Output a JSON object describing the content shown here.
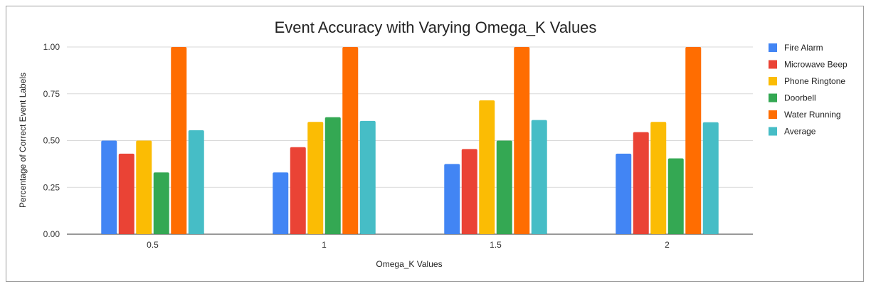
{
  "chart_data": {
    "type": "bar",
    "title": "Event Accuracy with Varying Omega_K Values",
    "xlabel": "Omega_K Values",
    "ylabel": "Percentage of Correct Event Labels",
    "categories": [
      "0.5",
      "1",
      "1.5",
      "2"
    ],
    "ylim": [
      0,
      1
    ],
    "yticks": [
      "0.00",
      "0.25",
      "0.50",
      "0.75",
      "1.00"
    ],
    "grid": true,
    "legend_position": "right",
    "series": [
      {
        "name": "Fire Alarm",
        "color": "#4285f4",
        "values": [
          0.5,
          0.33,
          0.375,
          0.43
        ]
      },
      {
        "name": "Microwave Beep",
        "color": "#ea4335",
        "values": [
          0.43,
          0.465,
          0.455,
          0.545
        ]
      },
      {
        "name": "Phone Ringtone",
        "color": "#fbbc04",
        "values": [
          0.5,
          0.6,
          0.715,
          0.6
        ]
      },
      {
        "name": "Doorbell",
        "color": "#34a853",
        "values": [
          0.33,
          0.625,
          0.5,
          0.405
        ]
      },
      {
        "name": "Water Running",
        "color": "#ff6d01",
        "values": [
          1.0,
          1.0,
          1.0,
          1.0
        ]
      },
      {
        "name": "Average",
        "color": "#46bdc6",
        "values": [
          0.555,
          0.605,
          0.61,
          0.598
        ]
      }
    ]
  }
}
